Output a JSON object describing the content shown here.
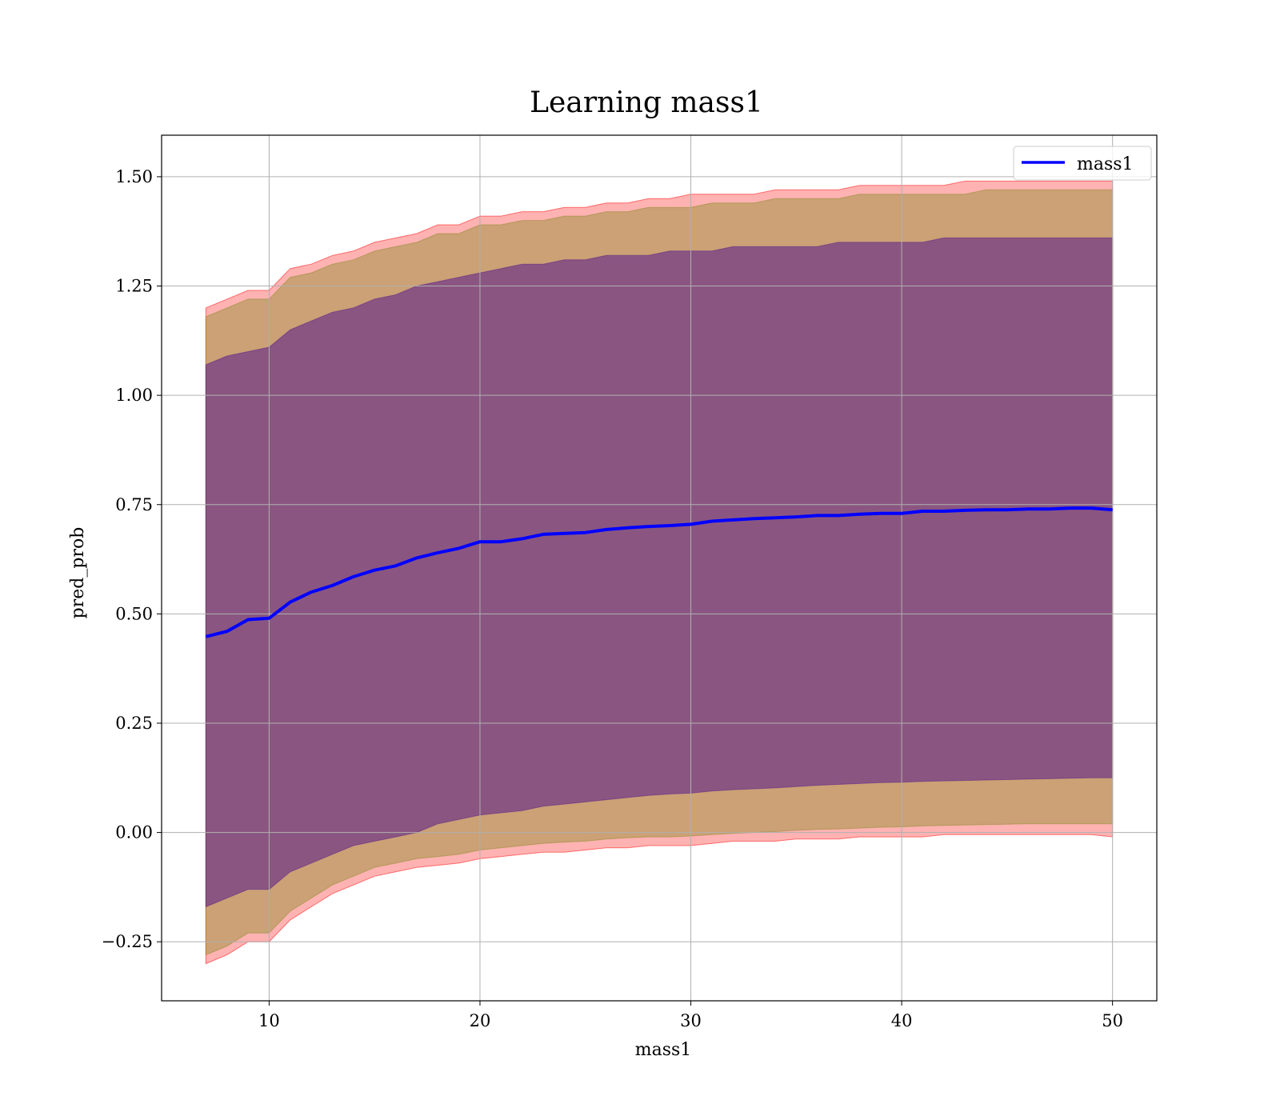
{
  "chart_data": {
    "type": "line",
    "title": "Learning mass1",
    "xlabel": "mass1",
    "ylabel": "pred_prob",
    "xlim": [
      4.9,
      52.1
    ],
    "ylim": [
      -0.385,
      1.595
    ],
    "xticks": [
      10,
      20,
      30,
      40,
      50
    ],
    "xtick_labels": [
      "10",
      "20",
      "30",
      "40",
      "50"
    ],
    "yticks": [
      -0.25,
      0.0,
      0.25,
      0.5,
      0.75,
      1.0,
      1.25,
      1.5
    ],
    "ytick_labels": [
      "−0.25",
      "0.00",
      "0.25",
      "0.50",
      "0.75",
      "1.00",
      "1.25",
      "1.50"
    ],
    "grid": true,
    "legend": {
      "position": "upper right",
      "entries": [
        "mass1"
      ]
    },
    "colors": {
      "line": "#0000ff",
      "band_outer": "#ff0000",
      "band_middle": "#8b8b2a",
      "band_inner": "#551a8b"
    },
    "series": [
      {
        "name": "mass1",
        "x": [
          7,
          8,
          9,
          10,
          11,
          12,
          13,
          14,
          15,
          16,
          17,
          18,
          19,
          20,
          21,
          22,
          23,
          24,
          25,
          26,
          27,
          28,
          29,
          30,
          31,
          32,
          33,
          34,
          35,
          36,
          37,
          38,
          39,
          40,
          41,
          42,
          43,
          44,
          45,
          46,
          47,
          48,
          49,
          50
        ],
        "y": [
          0.448,
          0.46,
          0.487,
          0.49,
          0.527,
          0.55,
          0.565,
          0.585,
          0.6,
          0.61,
          0.628,
          0.64,
          0.65,
          0.665,
          0.665,
          0.672,
          0.682,
          0.684,
          0.686,
          0.693,
          0.697,
          0.7,
          0.702,
          0.705,
          0.712,
          0.715,
          0.718,
          0.72,
          0.722,
          0.725,
          0.725,
          0.728,
          0.73,
          0.73,
          0.735,
          0.735,
          0.737,
          0.738,
          0.738,
          0.74,
          0.74,
          0.742,
          0.742,
          0.738
        ]
      }
    ],
    "bands": [
      {
        "x": [
          7,
          8,
          9,
          10,
          11,
          12,
          13,
          14,
          15,
          16,
          17,
          18,
          19,
          20,
          21,
          22,
          23,
          24,
          25,
          26,
          27,
          28,
          29,
          30,
          31,
          32,
          33,
          34,
          35,
          36,
          37,
          38,
          39,
          40,
          41,
          42,
          43,
          44,
          45,
          46,
          47,
          48,
          49,
          50
        ],
        "lower": [
          -0.3,
          -0.28,
          -0.25,
          -0.25,
          -0.2,
          -0.17,
          -0.14,
          -0.12,
          -0.1,
          -0.09,
          -0.08,
          -0.075,
          -0.07,
          -0.06,
          -0.055,
          -0.05,
          -0.045,
          -0.045,
          -0.04,
          -0.035,
          -0.035,
          -0.03,
          -0.03,
          -0.03,
          -0.025,
          -0.02,
          -0.02,
          -0.02,
          -0.015,
          -0.015,
          -0.015,
          -0.01,
          -0.01,
          -0.01,
          -0.01,
          -0.005,
          -0.005,
          -0.005,
          -0.005,
          -0.005,
          -0.005,
          -0.005,
          -0.005,
          -0.01
        ],
        "upper": [
          1.2,
          1.22,
          1.24,
          1.24,
          1.29,
          1.3,
          1.32,
          1.33,
          1.35,
          1.36,
          1.37,
          1.39,
          1.39,
          1.41,
          1.41,
          1.42,
          1.42,
          1.43,
          1.43,
          1.44,
          1.44,
          1.45,
          1.45,
          1.46,
          1.46,
          1.46,
          1.46,
          1.47,
          1.47,
          1.47,
          1.47,
          1.48,
          1.48,
          1.48,
          1.48,
          1.48,
          1.49,
          1.49,
          1.49,
          1.49,
          1.49,
          1.49,
          1.49,
          1.49
        ]
      },
      {
        "x": [
          7,
          8,
          9,
          10,
          11,
          12,
          13,
          14,
          15,
          16,
          17,
          18,
          19,
          20,
          21,
          22,
          23,
          24,
          25,
          26,
          27,
          28,
          29,
          30,
          31,
          32,
          33,
          34,
          35,
          36,
          37,
          38,
          39,
          40,
          41,
          42,
          43,
          44,
          45,
          46,
          47,
          48,
          49,
          50
        ],
        "lower": [
          -0.28,
          -0.26,
          -0.23,
          -0.23,
          -0.18,
          -0.15,
          -0.12,
          -0.1,
          -0.08,
          -0.07,
          -0.06,
          -0.055,
          -0.05,
          -0.04,
          -0.035,
          -0.03,
          -0.025,
          -0.022,
          -0.02,
          -0.015,
          -0.012,
          -0.01,
          -0.01,
          -0.008,
          -0.005,
          -0.002,
          0.0,
          0.002,
          0.005,
          0.007,
          0.008,
          0.01,
          0.012,
          0.013,
          0.015,
          0.016,
          0.017,
          0.018,
          0.019,
          0.02,
          0.02,
          0.02,
          0.02,
          0.02
        ],
        "upper": [
          1.18,
          1.2,
          1.22,
          1.22,
          1.27,
          1.28,
          1.3,
          1.31,
          1.33,
          1.34,
          1.35,
          1.37,
          1.37,
          1.39,
          1.39,
          1.4,
          1.4,
          1.41,
          1.41,
          1.42,
          1.42,
          1.43,
          1.43,
          1.43,
          1.44,
          1.44,
          1.44,
          1.45,
          1.45,
          1.45,
          1.45,
          1.46,
          1.46,
          1.46,
          1.46,
          1.46,
          1.46,
          1.47,
          1.47,
          1.47,
          1.47,
          1.47,
          1.47,
          1.47
        ]
      },
      {
        "x": [
          7,
          8,
          9,
          10,
          11,
          12,
          13,
          14,
          15,
          16,
          17,
          18,
          19,
          20,
          21,
          22,
          23,
          24,
          25,
          26,
          27,
          28,
          29,
          30,
          31,
          32,
          33,
          34,
          35,
          36,
          37,
          38,
          39,
          40,
          41,
          42,
          43,
          44,
          45,
          46,
          47,
          48,
          49,
          50
        ],
        "lower": [
          -0.17,
          -0.15,
          -0.13,
          -0.13,
          -0.09,
          -0.07,
          -0.05,
          -0.03,
          -0.02,
          -0.01,
          0.0,
          0.02,
          0.03,
          0.04,
          0.045,
          0.05,
          0.06,
          0.065,
          0.07,
          0.075,
          0.08,
          0.085,
          0.088,
          0.09,
          0.095,
          0.098,
          0.1,
          0.102,
          0.105,
          0.108,
          0.11,
          0.112,
          0.114,
          0.115,
          0.117,
          0.118,
          0.119,
          0.12,
          0.121,
          0.122,
          0.123,
          0.124,
          0.125,
          0.125
        ],
        "upper": [
          1.07,
          1.09,
          1.1,
          1.11,
          1.15,
          1.17,
          1.19,
          1.2,
          1.22,
          1.23,
          1.25,
          1.26,
          1.27,
          1.28,
          1.29,
          1.3,
          1.3,
          1.31,
          1.31,
          1.32,
          1.32,
          1.32,
          1.33,
          1.33,
          1.33,
          1.34,
          1.34,
          1.34,
          1.34,
          1.34,
          1.35,
          1.35,
          1.35,
          1.35,
          1.35,
          1.36,
          1.36,
          1.36,
          1.36,
          1.36,
          1.36,
          1.36,
          1.36,
          1.36
        ]
      }
    ]
  }
}
